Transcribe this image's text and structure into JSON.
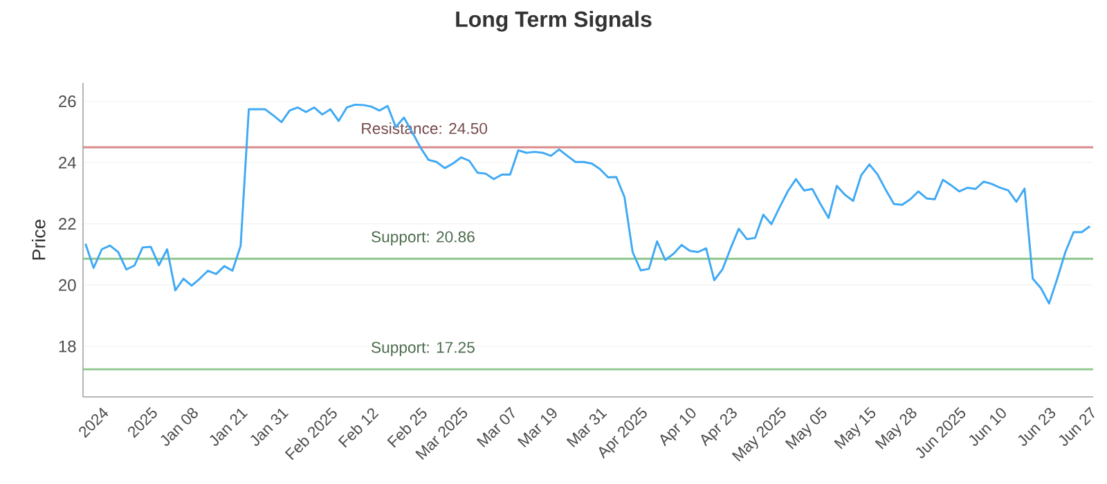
{
  "chart_data": {
    "type": "line",
    "title": "Long Term Signals",
    "ylabel": "Price",
    "categories": [
      null,
      null,
      "2024",
      null,
      null,
      null,
      null,
      null,
      "2025",
      null,
      null,
      null,
      null,
      "Jan 08",
      null,
      null,
      null,
      null,
      null,
      "Jan 21",
      null,
      null,
      null,
      null,
      "Jan 31",
      null,
      null,
      null,
      null,
      null,
      "Feb 2025",
      null,
      null,
      null,
      null,
      "Feb 12",
      null,
      null,
      null,
      null,
      null,
      "Feb 25",
      null,
      null,
      null,
      null,
      "Mar 2025",
      null,
      null,
      null,
      null,
      null,
      "Mar 07",
      null,
      null,
      null,
      null,
      "Mar 19",
      null,
      null,
      null,
      null,
      null,
      "Mar 31",
      null,
      null,
      null,
      null,
      "Apr 2025",
      null,
      null,
      null,
      null,
      null,
      "Apr 10",
      null,
      null,
      null,
      null,
      "Apr 23",
      null,
      null,
      null,
      null,
      null,
      "May 2025",
      null,
      null,
      null,
      null,
      "May 05",
      null,
      null,
      null,
      null,
      null,
      "May 15",
      null,
      null,
      null,
      null,
      "May 28",
      null,
      null,
      null,
      null,
      null,
      "Jun 2025",
      null,
      null,
      null,
      null,
      "Jun 10",
      null,
      null,
      null,
      null,
      null,
      "Jun 23",
      null,
      null,
      null,
      null,
      "Jun 27"
    ],
    "series": [
      {
        "color": "#3fa9f5",
        "values": [
          21.35,
          20.56,
          21.17,
          21.29,
          21.08,
          20.51,
          20.64,
          21.23,
          21.25,
          20.65,
          21.17,
          19.83,
          20.21,
          19.98,
          20.21,
          20.47,
          20.36,
          20.62,
          20.47,
          21.28,
          25.74,
          25.74,
          25.74,
          25.54,
          25.32,
          25.7,
          25.8,
          25.65,
          25.8,
          25.57,
          25.74,
          25.36,
          25.8,
          25.89,
          25.88,
          25.83,
          25.7,
          25.85,
          25.16,
          25.47,
          25.0,
          24.5,
          24.09,
          24.02,
          23.82,
          23.97,
          24.17,
          24.06,
          23.67,
          23.64,
          23.46,
          23.61,
          23.61,
          24.4,
          24.32,
          24.35,
          24.32,
          24.22,
          24.43,
          24.22,
          24.02,
          24.02,
          23.97,
          23.79,
          23.52,
          23.53,
          22.88,
          21.08,
          20.48,
          20.53,
          21.43,
          20.82,
          21.02,
          21.31,
          21.12,
          21.08,
          21.2,
          20.16,
          20.51,
          21.2,
          21.84,
          21.5,
          21.54,
          22.3,
          21.99,
          22.54,
          23.06,
          23.46,
          23.09,
          23.14,
          22.65,
          22.19,
          23.24,
          22.95,
          22.75,
          23.59,
          23.94,
          23.61,
          23.11,
          22.65,
          22.62,
          22.8,
          23.06,
          22.83,
          22.8,
          23.44,
          23.26,
          23.06,
          23.18,
          23.14,
          23.38,
          23.3,
          23.18,
          23.09,
          22.72,
          23.15,
          20.21,
          19.9,
          19.4,
          20.21,
          21.08,
          21.73,
          21.73,
          21.92
        ]
      }
    ],
    "ylim": [
      16.35,
      26.6
    ],
    "yticks": [
      18,
      20,
      22,
      24,
      26
    ],
    "grid": "y",
    "ref_lines": [
      {
        "axis": "y",
        "value": 24.5,
        "label": "Resistance: 24.50",
        "color": "#d98a8c"
      },
      {
        "axis": "y",
        "value": 20.86,
        "label": "Support: 20.86",
        "color": "#8cc68c"
      },
      {
        "axis": "y",
        "value": 17.25,
        "label": "Support: 17.25",
        "color": "#8cc68c"
      }
    ]
  }
}
